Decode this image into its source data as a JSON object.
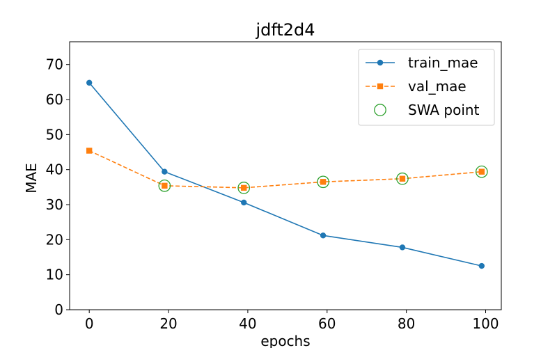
{
  "chart_data": {
    "type": "line",
    "title": "jdft2d4",
    "xlabel": "epochs",
    "ylabel": "MAE",
    "xlim": [
      -4.95,
      103.95
    ],
    "ylim": [
      0,
      76.5
    ],
    "xticks": [
      0,
      20,
      40,
      60,
      80,
      100
    ],
    "yticks": [
      0,
      10,
      20,
      30,
      40,
      50,
      60,
      70
    ],
    "grid": false,
    "legend_position": "top-right",
    "series": [
      {
        "name": "train_mae",
        "color": "#1f77b4",
        "marker": "circle",
        "linestyle": "solid",
        "x": [
          0,
          19,
          39,
          59,
          79,
          99
        ],
        "y": [
          64.8,
          39.4,
          30.6,
          21.2,
          17.8,
          12.5
        ]
      },
      {
        "name": "val_mae",
        "color": "#ff7f0e",
        "marker": "square",
        "linestyle": "dashed",
        "x": [
          0,
          19,
          39,
          59,
          79,
          99
        ],
        "y": [
          45.4,
          35.4,
          34.8,
          36.5,
          37.4,
          39.4
        ]
      },
      {
        "name": "SWA point",
        "color": "#2ca02c",
        "marker": "open-circle",
        "linestyle": "none",
        "x": [
          19,
          39,
          59,
          79,
          99
        ],
        "y": [
          35.4,
          34.8,
          36.5,
          37.4,
          39.4
        ]
      }
    ]
  }
}
